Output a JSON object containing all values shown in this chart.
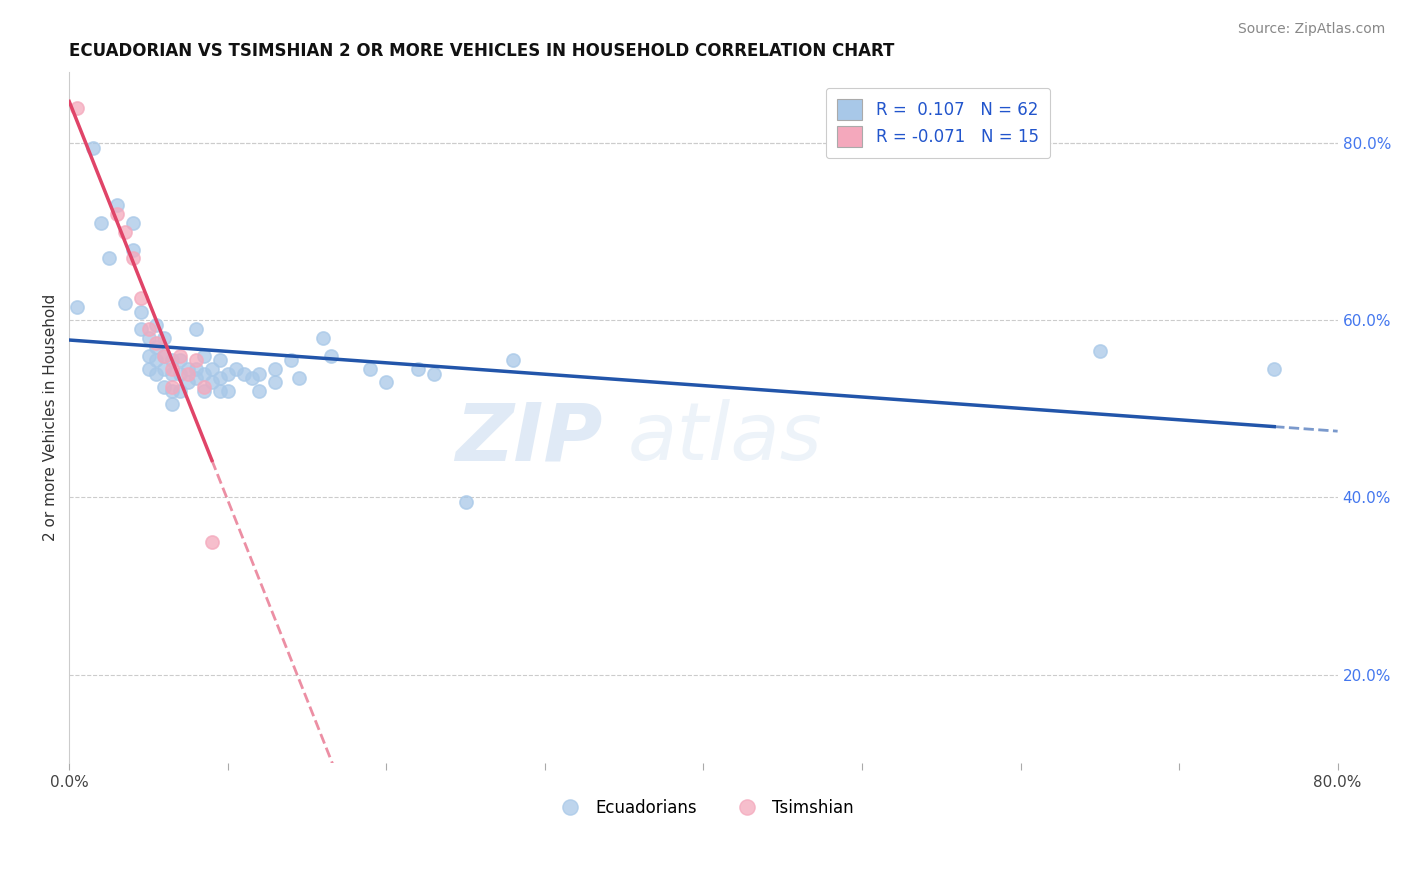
{
  "title": "ECUADORIAN VS TSIMSHIAN 2 OR MORE VEHICLES IN HOUSEHOLD CORRELATION CHART",
  "source_text": "Source: ZipAtlas.com",
  "xlabel": "",
  "ylabel": "2 or more Vehicles in Household",
  "xlim": [
    0.0,
    0.8
  ],
  "ylim": [
    0.1,
    0.88
  ],
  "xticks": [
    0.0,
    0.1,
    0.2,
    0.3,
    0.4,
    0.5,
    0.6,
    0.7,
    0.8
  ],
  "yticks_right": [
    0.2,
    0.4,
    0.6,
    0.8
  ],
  "ytick_right_labels": [
    "20.0%",
    "40.0%",
    "60.0%",
    "80.0%"
  ],
  "blue_R": 0.107,
  "blue_N": 62,
  "pink_R": -0.071,
  "pink_N": 15,
  "blue_color": "#a8c8e8",
  "pink_color": "#f4a8bc",
  "blue_line_color": "#2255aa",
  "pink_line_color": "#e04468",
  "legend_blue_label": "Ecuadorians",
  "legend_pink_label": "Tsimshian",
  "watermark_zip": "ZIP",
  "watermark_atlas": "atlas",
  "background_color": "#ffffff",
  "grid_color": "#cccccc",
  "blue_dots": [
    [
      0.005,
      0.615
    ],
    [
      0.015,
      0.795
    ],
    [
      0.02,
      0.71
    ],
    [
      0.025,
      0.67
    ],
    [
      0.03,
      0.73
    ],
    [
      0.035,
      0.62
    ],
    [
      0.04,
      0.71
    ],
    [
      0.04,
      0.68
    ],
    [
      0.045,
      0.61
    ],
    [
      0.045,
      0.59
    ],
    [
      0.05,
      0.58
    ],
    [
      0.05,
      0.56
    ],
    [
      0.05,
      0.545
    ],
    [
      0.055,
      0.595
    ],
    [
      0.055,
      0.57
    ],
    [
      0.055,
      0.555
    ],
    [
      0.055,
      0.54
    ],
    [
      0.06,
      0.58
    ],
    [
      0.06,
      0.56
    ],
    [
      0.06,
      0.545
    ],
    [
      0.06,
      0.525
    ],
    [
      0.065,
      0.555
    ],
    [
      0.065,
      0.54
    ],
    [
      0.065,
      0.52
    ],
    [
      0.065,
      0.505
    ],
    [
      0.07,
      0.555
    ],
    [
      0.07,
      0.54
    ],
    [
      0.07,
      0.52
    ],
    [
      0.075,
      0.545
    ],
    [
      0.075,
      0.53
    ],
    [
      0.08,
      0.59
    ],
    [
      0.08,
      0.545
    ],
    [
      0.08,
      0.535
    ],
    [
      0.085,
      0.56
    ],
    [
      0.085,
      0.54
    ],
    [
      0.085,
      0.52
    ],
    [
      0.09,
      0.545
    ],
    [
      0.09,
      0.53
    ],
    [
      0.095,
      0.555
    ],
    [
      0.095,
      0.535
    ],
    [
      0.095,
      0.52
    ],
    [
      0.1,
      0.54
    ],
    [
      0.1,
      0.52
    ],
    [
      0.105,
      0.545
    ],
    [
      0.11,
      0.54
    ],
    [
      0.115,
      0.535
    ],
    [
      0.12,
      0.54
    ],
    [
      0.12,
      0.52
    ],
    [
      0.13,
      0.545
    ],
    [
      0.13,
      0.53
    ],
    [
      0.14,
      0.555
    ],
    [
      0.145,
      0.535
    ],
    [
      0.16,
      0.58
    ],
    [
      0.165,
      0.56
    ],
    [
      0.19,
      0.545
    ],
    [
      0.2,
      0.53
    ],
    [
      0.22,
      0.545
    ],
    [
      0.23,
      0.54
    ],
    [
      0.25,
      0.395
    ],
    [
      0.28,
      0.555
    ],
    [
      0.65,
      0.565
    ],
    [
      0.76,
      0.545
    ]
  ],
  "pink_dots": [
    [
      0.005,
      0.84
    ],
    [
      0.03,
      0.72
    ],
    [
      0.035,
      0.7
    ],
    [
      0.04,
      0.67
    ],
    [
      0.045,
      0.625
    ],
    [
      0.05,
      0.59
    ],
    [
      0.055,
      0.575
    ],
    [
      0.06,
      0.56
    ],
    [
      0.065,
      0.545
    ],
    [
      0.065,
      0.525
    ],
    [
      0.07,
      0.56
    ],
    [
      0.075,
      0.54
    ],
    [
      0.08,
      0.555
    ],
    [
      0.085,
      0.525
    ],
    [
      0.09,
      0.35
    ]
  ]
}
